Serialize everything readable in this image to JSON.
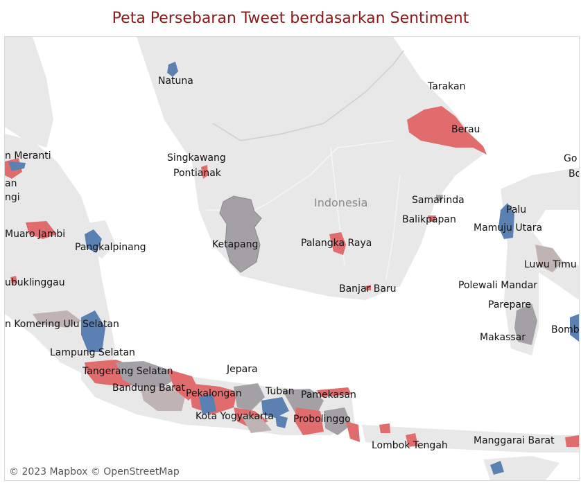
{
  "title": "Peta Persebaran Tweet berdasarkan Sentiment",
  "country_label": "Indonesia",
  "attribution": "© 2023 Mapbox © OpenStreetMap",
  "colors": {
    "positive": "#e06c6e",
    "negative": "#5b80b2",
    "neutral": "#a3a1a6",
    "mixed": "#c0b3b3",
    "land": "#e8e8e8",
    "water": "#ffffff"
  },
  "labels": [
    "Natuna",
    "Tarakan",
    "Berau",
    "Singkawang",
    "Pontianak",
    "Indonesia",
    "Samarinda",
    "Balikpapan",
    "Palu",
    "Mamuju Utara",
    "Go",
    "Bo",
    "an",
    "ngi",
    "Muaro Jambi",
    "Pangkalpinang",
    "Ketapang",
    "Palangka Raya",
    "Luwu Timu",
    "ubuklinggau",
    "Banjar Baru",
    "Polewali Mandar",
    "Parepare",
    "n Komering Ulu Selatan",
    "Bomb",
    "Makassar",
    "Lampung Selatan",
    "Jepara",
    "Tangerang Selatan",
    "Bandung Barat",
    "Pekalongan",
    "Tuban",
    "Pamekasan",
    "Kota Yogyakarta",
    "Probolinggo",
    "Lombok Tengah",
    "Manggarai Barat",
    "n Meranti"
  ]
}
